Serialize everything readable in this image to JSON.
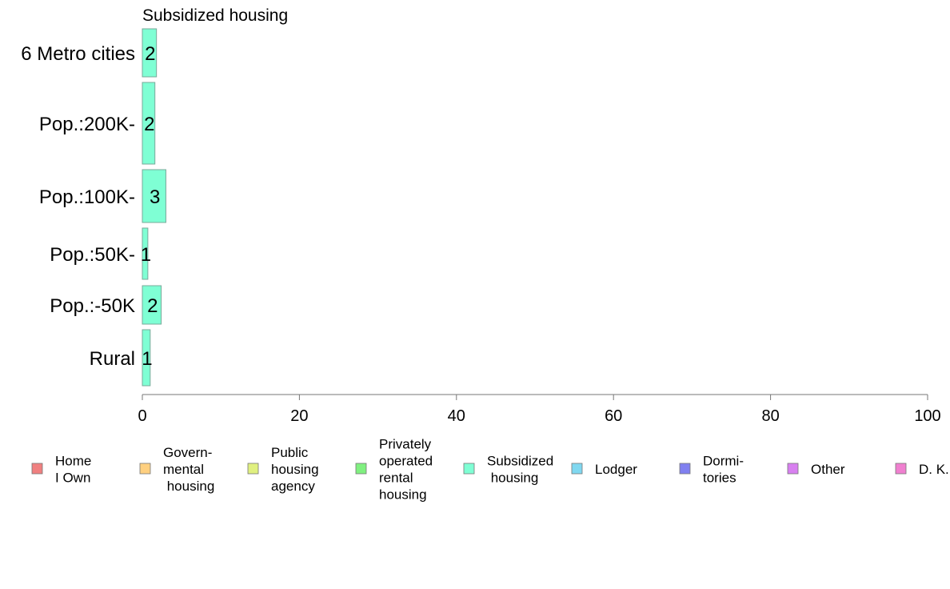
{
  "chart_data": {
    "type": "bar",
    "orientation": "horizontal",
    "title": "Subsidized housing",
    "categories": [
      "6 Metro cities",
      "Pop.:200K-",
      "Pop.:100K-",
      "Pop.:50K-",
      "Pop.:-50K",
      "Rural"
    ],
    "values": [
      1.8,
      1.6,
      3.0,
      0.7,
      2.4,
      1.0
    ],
    "value_labels": [
      "2",
      "2",
      "3",
      "1",
      "2",
      "1"
    ],
    "xlim": [
      0,
      100
    ],
    "xticks": [
      "0",
      "20",
      "40",
      "60",
      "80",
      "100"
    ],
    "bar_color": "#7fffd4",
    "grid": false,
    "legend": {
      "placement": "bottom",
      "items": [
        {
          "lines": [
            "Home",
            "I Own"
          ],
          "color": "#f08080"
        },
        {
          "lines": [
            "Govern-",
            "mental",
            " housing"
          ],
          "color": "#ffd080"
        },
        {
          "lines": [
            "Public",
            "housing",
            "agency"
          ],
          "color": "#e0f080"
        },
        {
          "lines": [
            "Privately",
            "operated",
            "rental",
            "housing"
          ],
          "color": "#80f080"
        },
        {
          "lines": [
            "Subsidized",
            " housing"
          ],
          "color": "#7fffd4"
        },
        {
          "lines": [
            "Lodger"
          ],
          "color": "#80d8f0"
        },
        {
          "lines": [
            "Dormi-",
            "tories"
          ],
          "color": "#8080f0"
        },
        {
          "lines": [
            "Other"
          ],
          "color": "#d880f0"
        },
        {
          "lines": [
            "D. K."
          ],
          "color": "#f080d0"
        }
      ]
    }
  }
}
